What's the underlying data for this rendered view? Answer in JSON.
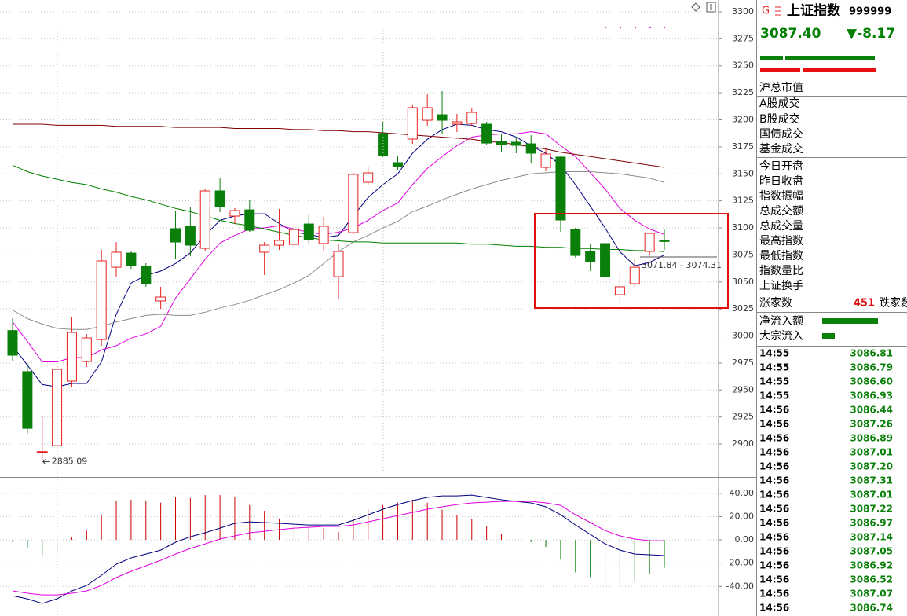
{
  "chart_data": [
    {
      "type": "candlestick",
      "ylim": [
        2869.5,
        3310.9
      ],
      "yticks": [
        3300,
        3275,
        3250,
        3225,
        3200,
        3175,
        3150,
        3125,
        3100,
        3075,
        3050,
        3025,
        3000,
        2975,
        2950,
        2925,
        2900
      ],
      "grid": true,
      "up_color": "#e8201f",
      "down_color": "#0a7f0a",
      "open": [
        3005,
        2967,
        2892,
        2898.5,
        2958.2,
        2976.4,
        2996.7,
        3063.6,
        3076.7,
        3064.4,
        3032.4,
        3099.3,
        3101.5,
        3081.1,
        3134.2,
        3110.9,
        3116.7,
        3077.5,
        3084,
        3084.7,
        3103.6,
        3085.5,
        3054.9,
        3095.6,
        3142.2,
        3187.3,
        3160.4,
        3182.2,
        3199.6,
        3204.7,
        3196,
        3196.7,
        3196,
        3180,
        3179.3,
        3177.8,
        3156,
        3165.5,
        3098.5,
        3078.2,
        3085.5,
        3038.2,
        3048.4,
        3078.2,
        3088.4
      ],
      "high": [
        3016.4,
        2974.9,
        2925.5,
        2971.3,
        3017.8,
        3001.8,
        3079.6,
        3086.9,
        3078.2,
        3067.3,
        3045.5,
        3116,
        3119.6,
        3136.4,
        3145.8,
        3118.2,
        3126.2,
        3086.9,
        3117.5,
        3105.1,
        3113.1,
        3110.2,
        3085.5,
        3150.9,
        3156.7,
        3198.2,
        3166.9,
        3214.2,
        3223.6,
        3226.5,
        3205.5,
        3210.5,
        3198.2,
        3187.3,
        3184.4,
        3185.8,
        3172.7,
        3166.9,
        3100,
        3085.5,
        3086.9,
        3060,
        3070.9,
        3095.6,
        3098.5
      ],
      "low": [
        2976.4,
        2909.5,
        2885.09,
        2896.4,
        2953.1,
        2971.3,
        2990.9,
        3054.9,
        3062.2,
        3045.5,
        3025.1,
        3070.9,
        3073.8,
        3078.2,
        3114.5,
        3103.6,
        3096.4,
        3056.4,
        3079.6,
        3078.2,
        3085.5,
        3078.2,
        3034.5,
        3094.2,
        3140,
        3165.5,
        3153.8,
        3177.8,
        3194.5,
        3187.3,
        3188.7,
        3194.5,
        3176.4,
        3170.5,
        3169.1,
        3159.6,
        3152.4,
        3096.4,
        3072.4,
        3060,
        3045.5,
        3030.9,
        3045.5,
        3074.5,
        3079.6
      ],
      "close": [
        2982.2,
        2914.5,
        2893,
        2969.1,
        3003.3,
        2998.2,
        3069.5,
        3077.5,
        3065.1,
        3048.4,
        3036,
        3086.9,
        3084,
        3134.2,
        3119.6,
        3116,
        3097.8,
        3084,
        3088.4,
        3098.5,
        3089.1,
        3101.5,
        3078.2,
        3149.5,
        3150.9,
        3166.9,
        3156.7,
        3211.3,
        3211.3,
        3199.6,
        3198.2,
        3206.9,
        3178.5,
        3177.1,
        3176.4,
        3169.1,
        3168.4,
        3107.3,
        3074.5,
        3068.7,
        3054.9,
        3045.5,
        3063.6,
        3094.9,
        3087.4
      ],
      "series": [
        {
          "color": "#000080",
          "values": [
            2991,
            2973,
            2955,
            2953,
            2956,
            2956,
            2976,
            3020,
            3049,
            3056,
            3060,
            3067,
            3077,
            3093,
            3107,
            3111,
            3113,
            3113,
            3104,
            3096,
            3094,
            3091,
            3093,
            3111,
            3128,
            3140,
            3150,
            3169,
            3182,
            3191,
            3196,
            3195,
            3191,
            3189,
            3184,
            3176,
            3169,
            3158,
            3140,
            3120,
            3100,
            3078,
            3065,
            3068,
            3075
          ]
        },
        {
          "color": "#e000e0",
          "values": [
            3013,
            2995,
            2976,
            2976,
            2980,
            2980,
            2987,
            2991,
            2998,
            3002,
            3009,
            3035,
            3053,
            3071,
            3086,
            3093,
            3099,
            3100,
            3102,
            3099,
            3096,
            3094,
            3096,
            3100,
            3107,
            3116,
            3123,
            3140,
            3155,
            3166,
            3176,
            3184,
            3186,
            3187,
            3187,
            3189,
            3187,
            3176,
            3166,
            3151,
            3136,
            3118,
            3107,
            3099,
            3094
          ]
        },
        {
          "color": "#8c8c8c",
          "values": [
            3024,
            3016,
            3011,
            3007,
            3006,
            3006,
            3009,
            3013,
            3016,
            3019,
            3020,
            3019,
            3019,
            3022,
            3026,
            3029,
            3033,
            3038,
            3043,
            3049,
            3056,
            3067,
            3078,
            3087,
            3093,
            3100,
            3106,
            3115,
            3120,
            3126,
            3131,
            3136,
            3140,
            3144,
            3147,
            3150,
            3151,
            3152,
            3152,
            3152,
            3151,
            3150,
            3148,
            3146,
            3142
          ]
        },
        {
          "color": "#008000",
          "values": [
            3158,
            3152,
            3148,
            3145,
            3142,
            3140,
            3136,
            3133,
            3129,
            3126,
            3122,
            3118,
            3115,
            3111,
            3107,
            3104,
            3102,
            3099,
            3096,
            3093,
            3091,
            3089,
            3088,
            3087,
            3087,
            3086,
            3086,
            3086,
            3086,
            3086,
            3086,
            3085,
            3085,
            3084,
            3083,
            3083,
            3082,
            3082,
            3081,
            3081,
            3080,
            3080,
            3079,
            3079,
            3078
          ]
        },
        {
          "color": "#800000",
          "values": [
            3196,
            3196,
            3196,
            3195,
            3195,
            3195,
            3195,
            3194,
            3194,
            3194,
            3194,
            3193,
            3193,
            3193,
            3193,
            3192,
            3192,
            3192,
            3192,
            3191,
            3191,
            3190,
            3190,
            3189,
            3189,
            3188,
            3187,
            3186,
            3185,
            3184,
            3183,
            3182,
            3180,
            3179,
            3177,
            3175,
            3173,
            3170,
            3168,
            3166,
            3164,
            3162,
            3160,
            3158,
            3156
          ]
        }
      ],
      "annotations": [
        "2885.09",
        "3071.84 - 3074.31"
      ]
    },
    {
      "type": "macd",
      "ylim": [
        -65.5,
        54.1
      ],
      "yticks": [
        {
          "value": 40,
          "label": "40.00"
        },
        {
          "value": 20,
          "label": "20.00"
        },
        {
          "value": 0,
          "label": "0.00"
        },
        {
          "value": -20,
          "label": "-20.00"
        },
        {
          "value": -40,
          "label": "-40.00"
        }
      ],
      "grid": true,
      "up_color": "#cc0000",
      "down_color": "#008000",
      "values": [
        -2,
        -7,
        -14,
        -10,
        2,
        8,
        21,
        34,
        34.5,
        34,
        32,
        37,
        36,
        38.5,
        38.5,
        37,
        30,
        25,
        18,
        15,
        11.5,
        10,
        7,
        18,
        26,
        30,
        32,
        34.5,
        32,
        26,
        21.6,
        18,
        11.5,
        5,
        0,
        -2,
        -6,
        -17,
        -28,
        -32,
        -39,
        -39,
        -36,
        -29,
        -24
      ],
      "series": [
        {
          "color": "#000080",
          "values": [
            -48,
            -50.7,
            -54.7,
            -50.7,
            -43.9,
            -39.2,
            -30.4,
            -20.9,
            -15.5,
            -12.2,
            -8.8,
            -2,
            2.7,
            6.1,
            10.1,
            14.2,
            15.5,
            14.9,
            14.2,
            13.5,
            12.8,
            12.8,
            12.8,
            16.9,
            21.6,
            26.4,
            30.4,
            33.8,
            36.5,
            37.8,
            37.8,
            38.5,
            36.5,
            34.5,
            33.1,
            31.8,
            28.4,
            21.6,
            12.8,
            4.7,
            -3.4,
            -8.8,
            -12.2,
            -12.8,
            -13.5
          ]
        },
        {
          "color": "#e000e0",
          "values": [
            -43.9,
            -45.9,
            -47.3,
            -47.3,
            -45.9,
            -43.9,
            -39.2,
            -32.4,
            -27,
            -22.3,
            -17.6,
            -12.2,
            -7.4,
            -3.4,
            0.7,
            3.4,
            6.1,
            7.4,
            8.8,
            10.1,
            10.8,
            11.5,
            11.5,
            12.8,
            15.5,
            18.2,
            20.9,
            23.6,
            26.4,
            28.4,
            30.4,
            31.8,
            32.4,
            33.1,
            33.1,
            33.1,
            31.8,
            29.7,
            21.6,
            14.9,
            8.1,
            3.4,
            0.7,
            -0.7,
            -0.7
          ]
        }
      ]
    }
  ],
  "quote_panel": {
    "marker": "G",
    "name": "上证指数",
    "code": "999999",
    "price": "3087.40",
    "change": "▼-8.17",
    "fields": [
      "沪总市值",
      "A股成交",
      "B股成交",
      "国债成交",
      "基金成交",
      "今日开盘",
      "昨日收盘",
      "指数振幅",
      "总成交额",
      "总成交量",
      "最高指数",
      "最低指数",
      "指数量比",
      "上证换手"
    ],
    "advance_label": "涨家数",
    "advance_count": "451",
    "decline_label": "跌家数",
    "flows": [
      "净流入额",
      "大宗流入"
    ],
    "ticks": [
      {
        "time": "14:55",
        "price": "3086.81"
      },
      {
        "time": "14:55",
        "price": "3086.79"
      },
      {
        "time": "14:55",
        "price": "3086.60"
      },
      {
        "time": "14:55",
        "price": "3086.93"
      },
      {
        "time": "14:56",
        "price": "3086.44"
      },
      {
        "time": "14:56",
        "price": "3087.26"
      },
      {
        "time": "14:56",
        "price": "3086.89"
      },
      {
        "time": "14:56",
        "price": "3087.01"
      },
      {
        "time": "14:56",
        "price": "3087.20"
      },
      {
        "time": "14:56",
        "price": "3087.31"
      },
      {
        "time": "14:56",
        "price": "3087.01"
      },
      {
        "time": "14:56",
        "price": "3087.22"
      },
      {
        "time": "14:56",
        "price": "3086.97"
      },
      {
        "time": "14:56",
        "price": "3087.14"
      },
      {
        "time": "14:56",
        "price": "3087.05"
      },
      {
        "time": "14:56",
        "price": "3086.92"
      },
      {
        "time": "14:56",
        "price": "3086.52"
      },
      {
        "time": "14:56",
        "price": "3087.07"
      },
      {
        "time": "14:56",
        "price": "3086.74"
      }
    ]
  }
}
